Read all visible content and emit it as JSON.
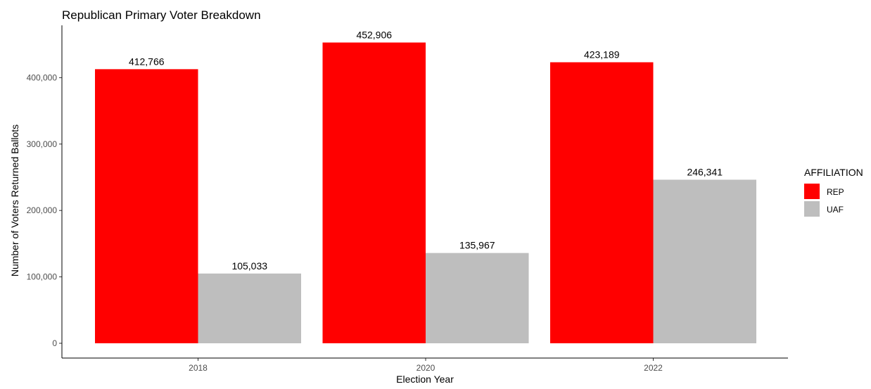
{
  "chart_data": {
    "type": "bar",
    "title": "Republican Primary Voter Breakdown",
    "xlabel": "Election Year",
    "ylabel": "Number of Voters Returned Ballots",
    "categories": [
      "2018",
      "2020",
      "2022"
    ],
    "series": [
      {
        "name": "REP",
        "color": "#ff0000",
        "values": [
          412766,
          452906,
          423189
        ],
        "labels": [
          "412,766",
          "452,906",
          "423,189"
        ]
      },
      {
        "name": "UAF",
        "color": "#bebebe",
        "values": [
          105033,
          135967,
          246341
        ],
        "labels": [
          "105,033",
          "135,967",
          "246,341"
        ]
      }
    ],
    "y_ticks": [
      0,
      100000,
      200000,
      300000,
      400000
    ],
    "y_tick_labels": [
      "0",
      "100,000",
      "200,000",
      "300,000",
      "400,000"
    ],
    "ylim": [
      0,
      475000
    ],
    "grid": false,
    "legend": {
      "title": "AFFILIATION",
      "position": "right"
    }
  }
}
